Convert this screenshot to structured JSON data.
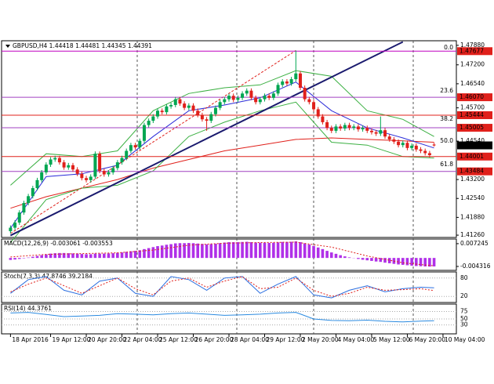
{
  "chart_data": [
    {
      "type": "candlestick",
      "title": "GBPUSD,H4 1.44418 1.44481 1.44345 1.44391",
      "xlim": [
        -2,
        100
      ],
      "xticks": [
        {
          "value": 0,
          "label": "18 Apr 2016"
        },
        {
          "value": 9,
          "label": "19 Apr 12:00"
        },
        {
          "value": 17,
          "label": "20 Apr 20:00"
        },
        {
          "value": 25,
          "label": "22 Apr 04:00"
        },
        {
          "value": 33,
          "label": "25 Apr 12:00"
        },
        {
          "value": 41,
          "label": "26 Apr 20:00"
        },
        {
          "value": 49,
          "label": "28 Apr 04:00"
        },
        {
          "value": 57,
          "label": "29 Apr 12:00"
        },
        {
          "value": 65,
          "label": "2 May 20:00"
        },
        {
          "value": 73,
          "label": "4 May 04:00"
        },
        {
          "value": 81,
          "label": "5 May 12:00"
        },
        {
          "value": 89,
          "label": "6 May 20:00"
        },
        {
          "value": 97,
          "label": "10 May 04:00"
        }
      ],
      "ylim": [
        1.4118,
        1.4804
      ],
      "yticks": [
        {
          "value": 1.4788,
          "label": "1.47880"
        },
        {
          "value": 1.472,
          "label": "1.47200"
        },
        {
          "value": 1.4654,
          "label": "1.46540"
        },
        {
          "value": 1.457,
          "label": "1.45700"
        },
        {
          "value": 1.4454,
          "label": "1.44540"
        },
        {
          "value": 1.432,
          "label": "1.43200"
        },
        {
          "value": 1.4254,
          "label": "1.42540"
        },
        {
          "value": 1.4188,
          "label": "1.41880"
        },
        {
          "value": 1.4126,
          "label": "1.41260"
        }
      ],
      "up_color": "#00a651",
      "down_color": "#e0201b",
      "open": [
        1.414,
        1.4152,
        1.417,
        1.4205,
        1.4238,
        1.4262,
        1.429,
        1.4318,
        1.4345,
        1.4372,
        1.439,
        1.4395,
        1.438,
        1.4362,
        1.437,
        1.4355,
        1.434,
        1.4325,
        1.4318,
        1.433,
        1.441,
        1.435,
        1.4338,
        1.4345,
        1.436,
        1.438,
        1.4395,
        1.442,
        1.444,
        1.4432,
        1.4455,
        1.451,
        1.4525,
        1.454,
        1.456,
        1.4555,
        1.4575,
        1.458,
        1.46,
        1.4585,
        1.457,
        1.4578,
        1.456,
        1.4545,
        1.453,
        1.4525,
        1.4548,
        1.457,
        1.459,
        1.46,
        1.4612,
        1.4598,
        1.4605,
        1.462,
        1.463,
        1.4605,
        1.459,
        1.46,
        1.4612,
        1.4605,
        1.462,
        1.465,
        1.4662,
        1.4655,
        1.467,
        1.469,
        1.464,
        1.46,
        1.459,
        1.4565,
        1.454,
        1.452,
        1.45,
        1.449,
        1.4505,
        1.4498,
        1.451,
        1.45,
        1.4505,
        1.4495,
        1.45,
        1.449,
        1.4485,
        1.448,
        1.4492,
        1.447,
        1.446,
        1.4452,
        1.444,
        1.4448,
        1.443,
        1.4438,
        1.4425,
        1.442,
        1.4412,
        1.4442
      ],
      "high": [
        1.416,
        1.4178,
        1.4213,
        1.4246,
        1.427,
        1.4298,
        1.4326,
        1.4353,
        1.438,
        1.4398,
        1.4403,
        1.4403,
        1.4388,
        1.4378,
        1.4378,
        1.4363,
        1.4348,
        1.4333,
        1.4338,
        1.4418,
        1.4418,
        1.4358,
        1.4353,
        1.4368,
        1.4388,
        1.4403,
        1.4428,
        1.4448,
        1.4448,
        1.4463,
        1.4518,
        1.4533,
        1.4548,
        1.4568,
        1.4568,
        1.4583,
        1.4588,
        1.4608,
        1.4608,
        1.4593,
        1.4586,
        1.4586,
        1.4568,
        1.4553,
        1.4538,
        1.4556,
        1.4578,
        1.4598,
        1.4608,
        1.462,
        1.462,
        1.4613,
        1.4628,
        1.4638,
        1.4638,
        1.4613,
        1.4608,
        1.462,
        1.462,
        1.4628,
        1.4658,
        1.467,
        1.467,
        1.4678,
        1.477,
        1.4698,
        1.4648,
        1.4608,
        1.4598,
        1.4573,
        1.4548,
        1.4528,
        1.4508,
        1.4513,
        1.4513,
        1.4518,
        1.4518,
        1.4513,
        1.4513,
        1.4508,
        1.4508,
        1.4498,
        1.4493,
        1.454,
        1.45,
        1.4478,
        1.4468,
        1.446,
        1.4456,
        1.4456,
        1.4446,
        1.4446,
        1.4433,
        1.4428,
        1.442,
        1.4448
      ],
      "low": [
        1.4132,
        1.4144,
        1.4162,
        1.4197,
        1.423,
        1.4254,
        1.4282,
        1.431,
        1.4337,
        1.4364,
        1.4382,
        1.4372,
        1.4354,
        1.4354,
        1.4347,
        1.4332,
        1.4317,
        1.431,
        1.431,
        1.4322,
        1.4342,
        1.433,
        1.433,
        1.4337,
        1.4352,
        1.4372,
        1.4387,
        1.4412,
        1.4424,
        1.4424,
        1.4447,
        1.4502,
        1.4517,
        1.4532,
        1.4547,
        1.4547,
        1.4567,
        1.4572,
        1.4577,
        1.4562,
        1.4562,
        1.4552,
        1.4537,
        1.4522,
        1.449,
        1.4517,
        1.454,
        1.4562,
        1.4582,
        1.4592,
        1.459,
        1.459,
        1.4597,
        1.4612,
        1.4597,
        1.4582,
        1.4582,
        1.4592,
        1.4597,
        1.4597,
        1.4612,
        1.4642,
        1.4647,
        1.4647,
        1.4662,
        1.4632,
        1.4592,
        1.4582,
        1.4557,
        1.4532,
        1.4512,
        1.4492,
        1.4482,
        1.4482,
        1.449,
        1.449,
        1.4492,
        1.4492,
        1.4487,
        1.4487,
        1.4482,
        1.4477,
        1.4472,
        1.4472,
        1.4462,
        1.4452,
        1.4444,
        1.4432,
        1.4432,
        1.4422,
        1.4422,
        1.4417,
        1.4412,
        1.4404,
        1.4397,
        1.4435
      ],
      "close": [
        1.4152,
        1.417,
        1.4205,
        1.4238,
        1.4262,
        1.429,
        1.4318,
        1.4345,
        1.4372,
        1.439,
        1.4395,
        1.438,
        1.4362,
        1.437,
        1.4355,
        1.434,
        1.4325,
        1.4318,
        1.433,
        1.441,
        1.435,
        1.4338,
        1.4345,
        1.436,
        1.438,
        1.4395,
        1.442,
        1.444,
        1.4432,
        1.4455,
        1.451,
        1.4525,
        1.454,
        1.456,
        1.4555,
        1.4575,
        1.458,
        1.46,
        1.4585,
        1.457,
        1.4578,
        1.456,
        1.4545,
        1.453,
        1.4525,
        1.4548,
        1.457,
        1.459,
        1.46,
        1.4612,
        1.4598,
        1.4605,
        1.462,
        1.463,
        1.4605,
        1.459,
        1.46,
        1.4612,
        1.4605,
        1.462,
        1.465,
        1.4662,
        1.4655,
        1.467,
        1.469,
        1.464,
        1.46,
        1.459,
        1.4565,
        1.454,
        1.452,
        1.45,
        1.449,
        1.4505,
        1.4498,
        1.451,
        1.45,
        1.4505,
        1.4495,
        1.45,
        1.449,
        1.4485,
        1.448,
        1.4492,
        1.447,
        1.446,
        1.4452,
        1.444,
        1.4448,
        1.443,
        1.4438,
        1.4425,
        1.442,
        1.4412,
        1.4405,
        1.4439
      ],
      "line_x": [
        0,
        8,
        16,
        24,
        32,
        40,
        48,
        56,
        64,
        72,
        80,
        88,
        95
      ],
      "lines": [
        {
          "color": "#e0201b",
          "values": [
            1.422,
            1.426,
            1.429,
            1.432,
            1.436,
            1.439,
            1.442,
            1.444,
            1.446,
            1.4465,
            1.446,
            1.4455,
            1.445
          ]
        },
        {
          "color": "#2a2ad8",
          "values": [
            1.415,
            1.433,
            1.434,
            1.437,
            1.447,
            1.456,
            1.458,
            1.4605,
            1.466,
            1.456,
            1.45,
            1.4465,
            1.443
          ]
        },
        {
          "color": "#3cb043",
          "values": [
            1.43,
            1.441,
            1.44,
            1.442,
            1.456,
            1.462,
            1.464,
            1.465,
            1.47,
            1.468,
            1.456,
            1.453,
            1.447
          ]
        },
        {
          "color": "#3cb043",
          "values": [
            1.41,
            1.425,
            1.429,
            1.43,
            1.435,
            1.447,
            1.452,
            1.456,
            1.459,
            1.445,
            1.444,
            1.44,
            1.4395
          ]
        }
      ],
      "trendline": {
        "color": "#1a1a6e",
        "x": [
          0,
          88
        ],
        "y": [
          1.4125,
          1.48
        ]
      },
      "fib_line": {
        "color": "#e0201b",
        "x": [
          0,
          64
        ],
        "y": [
          1.4132,
          1.477
        ]
      },
      "levels": [
        1.47677,
        {
          "value": 1.4607,
          "label": "1.46070"
        },
        1.45444,
        1.45005,
        1.44001,
        1.43484
      ],
      "level_colors": [
        "#c000c0",
        "#a040c0",
        "#e0201b",
        "#a040c0",
        "#e0201b",
        "#a040c0"
      ],
      "current_price": 1.44391,
      "fib": [
        {
          "label": "0.0",
          "price": 1.4768
        },
        {
          "label": "23.6",
          "price": 1.4618
        },
        {
          "label": "38.2",
          "price": 1.452
        },
        {
          "label": "50.0",
          "price": 1.4443
        },
        {
          "label": "61.8",
          "price": 1.4361
        }
      ]
    },
    {
      "type": "bar",
      "title": "MACD(12,26,9) -0.003061 -0.003553",
      "color": "#b030e8",
      "ylim": [
        -0.0063,
        0.0096
      ],
      "yticks": [
        0.007245,
        -0.004316
      ],
      "values": [
        -0.001,
        -0.0008,
        -0.0005,
        -0.0002,
        0.0002,
        0.0006,
        0.001,
        0.0014,
        0.0018,
        0.0022,
        0.0024,
        0.0025,
        0.0025,
        0.0024,
        0.0023,
        0.0022,
        0.002,
        0.0019,
        0.0019,
        0.0022,
        0.0022,
        0.0022,
        0.0023,
        0.0024,
        0.0026,
        0.0028,
        0.0031,
        0.0034,
        0.0036,
        0.0039,
        0.0045,
        0.005,
        0.0055,
        0.006,
        0.0063,
        0.0067,
        0.007,
        0.0074,
        0.0075,
        0.0075,
        0.0076,
        0.0075,
        0.0073,
        0.0071,
        0.0069,
        0.007,
        0.0072,
        0.0075,
        0.0078,
        0.008,
        0.008,
        0.008,
        0.0081,
        0.0082,
        0.008,
        0.0078,
        0.0077,
        0.0077,
        0.0076,
        0.0077,
        0.0079,
        0.0081,
        0.0081,
        0.0082,
        0.0084,
        0.008,
        0.0074,
        0.0068,
        0.0061,
        0.0053,
        0.0045,
        0.0036,
        0.0028,
        0.0021,
        0.0014,
        0.0008,
        0.0003,
        -0.0001,
        -0.0005,
        -0.0009,
        -0.0012,
        -0.0015,
        -0.0018,
        -0.002,
        -0.0024,
        -0.0027,
        -0.003,
        -0.0033,
        -0.0035,
        -0.0037,
        -0.0039,
        -0.0041,
        -0.0042,
        -0.0043,
        -0.0044,
        -0.0043
      ],
      "signal": {
        "color": "#e0201b",
        "x": [
          0,
          8,
          16,
          24,
          32,
          40,
          48,
          56,
          64,
          72,
          80,
          88,
          95
        ],
        "values": [
          0.0005,
          0.0018,
          0.0022,
          0.0026,
          0.004,
          0.0065,
          0.0075,
          0.0078,
          0.008,
          0.0055,
          0.001,
          -0.0025,
          -0.004
        ]
      }
    },
    {
      "type": "line",
      "title": "Stoch(7,3,3) 47.8746 39.2184",
      "ylim": [
        0,
        100
      ],
      "yticks": [
        80,
        20
      ],
      "x": [
        0,
        4,
        8,
        12,
        16,
        20,
        24,
        28,
        32,
        36,
        40,
        44,
        48,
        52,
        56,
        60,
        64,
        68,
        72,
        76,
        80,
        84,
        88,
        92,
        95
      ],
      "series": [
        {
          "color": "#2a6ee0",
          "values": [
            30,
            75,
            85,
            40,
            25,
            70,
            80,
            30,
            20,
            85,
            75,
            40,
            80,
            85,
            30,
            60,
            85,
            25,
            15,
            40,
            55,
            35,
            45,
            50,
            48
          ]
        },
        {
          "color": "#e0201b",
          "dash": true,
          "values": [
            35,
            60,
            80,
            55,
            30,
            55,
            80,
            45,
            25,
            70,
            80,
            50,
            70,
            85,
            45,
            50,
            80,
            40,
            20,
            30,
            50,
            40,
            42,
            45,
            39
          ]
        }
      ]
    },
    {
      "type": "line",
      "title": "RSI(14) 44.3761",
      "ylim": [
        0,
        100
      ],
      "yticks": [
        75,
        50,
        30
      ],
      "x": [
        0,
        4,
        8,
        12,
        16,
        20,
        24,
        28,
        32,
        36,
        40,
        44,
        48,
        52,
        56,
        60,
        64,
        68,
        72,
        76,
        80,
        84,
        88,
        92,
        95
      ],
      "series": [
        {
          "color": "#2a8ae0",
          "values": [
            70,
            72,
            65,
            58,
            60,
            62,
            68,
            66,
            64,
            68,
            70,
            66,
            62,
            64,
            66,
            70,
            72,
            50,
            45,
            44,
            46,
            42,
            40,
            43,
            44
          ]
        }
      ]
    }
  ]
}
